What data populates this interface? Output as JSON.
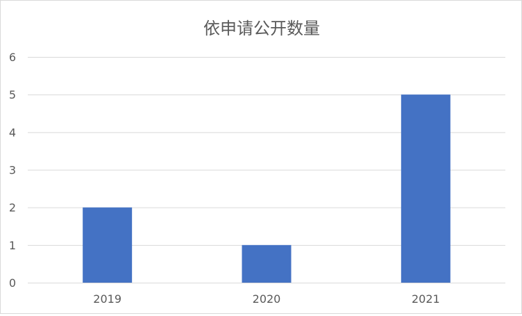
{
  "chart_data": {
    "type": "bar",
    "title": "依申请公开数量",
    "categories": [
      "2019",
      "2020",
      "2021"
    ],
    "values": [
      2,
      1,
      5
    ],
    "ylim": [
      0,
      6
    ],
    "yticks": [
      0,
      1,
      2,
      3,
      4,
      5,
      6
    ],
    "grid": true,
    "legend": "none",
    "bar_color": "#4472C4",
    "grid_color": "#d9d9d9"
  }
}
